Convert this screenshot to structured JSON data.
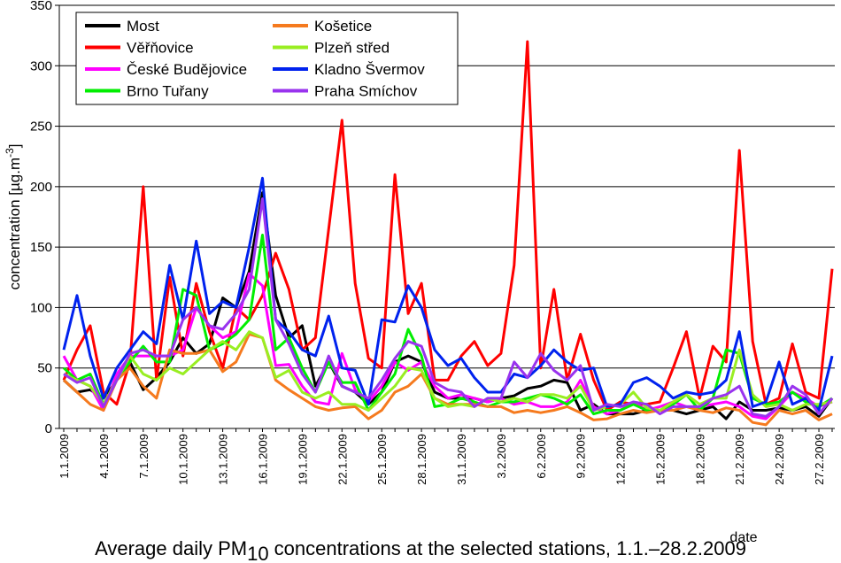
{
  "chart_data": {
    "type": "line",
    "title": "Average daily PM",
    "title_subscript": "10",
    "title_rest": " concentrations at the selected stations, 1.1.–28.2.2009",
    "y_label": "concentration [µg.m",
    "y_label_superscript": "-3",
    "y_label_rest": "]",
    "x_label": "date",
    "categories": [
      "1.1.2009",
      null,
      null,
      "4.1.2009",
      null,
      null,
      "7.1.2009",
      null,
      null,
      "10.1.2009",
      null,
      null,
      "13.1.2009",
      null,
      null,
      "16.1.2009",
      null,
      null,
      "19.1.2009",
      null,
      null,
      "22.1.2009",
      null,
      null,
      "25.1.2009",
      null,
      null,
      "28.1.2009",
      null,
      null,
      "31.1.2009",
      null,
      null,
      "3.2.2009",
      null,
      null,
      "6.2.2009",
      null,
      null,
      "9.2.2009",
      null,
      null,
      "12.2.2009",
      null,
      null,
      "15.2.2009",
      null,
      null,
      "18.2.2009",
      null,
      null,
      "21.2.2009",
      null,
      null,
      "24.2.2009",
      null,
      null,
      "27.2.2009",
      null
    ],
    "ylim": [
      0,
      350
    ],
    "yticks": [
      0,
      50,
      100,
      150,
      200,
      250,
      300,
      350
    ],
    "grid": true,
    "legend": "upper left",
    "series": [
      {
        "name": "Most",
        "color": "#000000",
        "values": [
          40,
          30,
          32,
          25,
          40,
          55,
          32,
          42,
          55,
          75,
          62,
          70,
          108,
          100,
          130,
          195,
          110,
          75,
          85,
          35,
          55,
          35,
          30,
          20,
          30,
          55,
          60,
          55,
          30,
          25,
          25,
          25,
          22,
          25,
          27,
          33,
          35,
          40,
          38,
          15,
          20,
          12,
          12,
          12,
          15,
          15,
          15,
          12,
          15,
          18,
          8,
          22,
          15,
          15,
          17,
          15,
          18,
          10,
          25
        ]
      },
      {
        "name": "Věřňovice",
        "color": "#ff0000",
        "values": [
          40,
          65,
          85,
          30,
          20,
          55,
          200,
          40,
          125,
          60,
          120,
          80,
          50,
          100,
          90,
          110,
          145,
          115,
          65,
          75,
          165,
          255,
          120,
          58,
          50,
          210,
          95,
          120,
          40,
          40,
          60,
          72,
          52,
          62,
          135,
          320,
          50,
          115,
          40,
          78,
          40,
          15,
          22,
          20,
          20,
          22,
          50,
          80,
          25,
          68,
          55,
          230,
          72,
          20,
          25,
          70,
          30,
          25,
          132
        ]
      },
      {
        "name": "České Budějovice",
        "color": "#ff00ff",
        "values": [
          60,
          40,
          35,
          15,
          45,
          60,
          60,
          60,
          60,
          65,
          100,
          85,
          75,
          80,
          128,
          118,
          52,
          53,
          35,
          22,
          20,
          62,
          32,
          22,
          35,
          55,
          48,
          55,
          35,
          25,
          28,
          25,
          22,
          25,
          20,
          22,
          18,
          18,
          22,
          40,
          18,
          12,
          15,
          22,
          15,
          18,
          22,
          18,
          18,
          20,
          22,
          18,
          10,
          8,
          18,
          30,
          25,
          18,
          22
        ]
      },
      {
        "name": "Brno Tuřany",
        "color": "#00ee00",
        "values": [
          50,
          40,
          45,
          20,
          40,
          55,
          68,
          55,
          55,
          115,
          110,
          65,
          70,
          78,
          90,
          160,
          65,
          75,
          50,
          30,
          55,
          38,
          38,
          15,
          30,
          45,
          82,
          60,
          18,
          20,
          25,
          22,
          18,
          22,
          22,
          25,
          28,
          25,
          20,
          28,
          12,
          15,
          15,
          20,
          15,
          15,
          20,
          28,
          15,
          25,
          65,
          62,
          25,
          20,
          22,
          30,
          22,
          18,
          25
        ]
      },
      {
        "name": "Košetice",
        "color": "#f57a1e",
        "values": [
          40,
          30,
          20,
          15,
          40,
          50,
          35,
          25,
          65,
          62,
          62,
          65,
          47,
          55,
          78,
          75,
          40,
          32,
          25,
          18,
          15,
          17,
          18,
          8,
          15,
          30,
          35,
          45,
          25,
          20,
          20,
          20,
          18,
          18,
          13,
          15,
          13,
          15,
          18,
          13,
          7,
          8,
          12,
          15,
          13,
          15,
          15,
          18,
          15,
          13,
          17,
          15,
          5,
          3,
          15,
          12,
          15,
          7,
          12
        ]
      },
      {
        "name": "Plzeň střed",
        "color": "#99ee22",
        "values": [
          45,
          40,
          35,
          20,
          40,
          60,
          45,
          40,
          50,
          45,
          55,
          65,
          72,
          65,
          80,
          75,
          42,
          48,
          30,
          25,
          30,
          20,
          20,
          15,
          25,
          35,
          50,
          48,
          25,
          18,
          20,
          18,
          25,
          22,
          25,
          22,
          28,
          28,
          25,
          35,
          15,
          18,
          20,
          30,
          17,
          15,
          22,
          28,
          20,
          25,
          25,
          65,
          28,
          18,
          20,
          15,
          20,
          20,
          22
        ]
      },
      {
        "name": "Kladno Švermov",
        "color": "#0022ee",
        "values": [
          65,
          110,
          60,
          25,
          50,
          65,
          80,
          70,
          135,
          90,
          155,
          95,
          105,
          100,
          150,
          207,
          90,
          80,
          65,
          60,
          93,
          50,
          48,
          20,
          90,
          88,
          118,
          100,
          65,
          52,
          58,
          42,
          30,
          30,
          45,
          42,
          52,
          65,
          55,
          48,
          50,
          18,
          20,
          38,
          42,
          35,
          25,
          30,
          28,
          30,
          40,
          80,
          18,
          22,
          55,
          20,
          25,
          15,
          60
        ]
      },
      {
        "name": "Praha Smíchov",
        "color": "#9933ee",
        "values": [
          45,
          38,
          42,
          18,
          40,
          62,
          65,
          60,
          60,
          90,
          100,
          85,
          82,
          95,
          115,
          190,
          90,
          70,
          45,
          30,
          60,
          35,
          30,
          25,
          40,
          58,
          72,
          68,
          38,
          32,
          30,
          18,
          25,
          25,
          55,
          42,
          62,
          48,
          40,
          52,
          15,
          20,
          18,
          22,
          20,
          12,
          18,
          18,
          18,
          25,
          28,
          35,
          12,
          10,
          18,
          35,
          28,
          12,
          25
        ]
      }
    ]
  }
}
